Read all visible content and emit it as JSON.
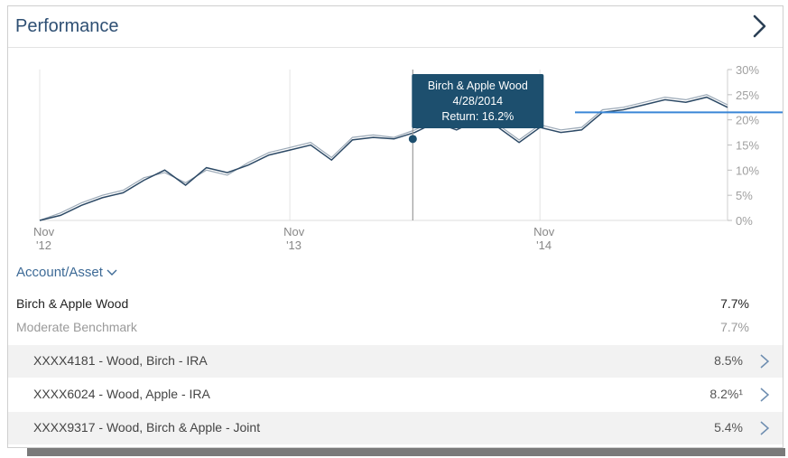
{
  "card": {
    "title": "Performance",
    "chevron_icon": "chevron-right-icon"
  },
  "chart_data": {
    "type": "line",
    "x_tick_labels": [
      {
        "month": "Nov",
        "year": "'12"
      },
      {
        "month": "Nov",
        "year": "'13"
      },
      {
        "month": "Nov",
        "year": "'14"
      }
    ],
    "y_tick_labels": [
      "30%",
      "25%",
      "20%",
      "15%",
      "10%",
      "5%",
      "0%"
    ],
    "ylim": [
      0,
      30
    ],
    "x_range": [
      "2012-11",
      "2015-08"
    ],
    "grid": "vertical",
    "axis_side": "right",
    "series": [
      {
        "color": "#2d4a66",
        "values": [
          [
            "2012-11",
            0
          ],
          [
            "2012-12",
            1.0
          ],
          [
            "2013-01",
            3.0
          ],
          [
            "2013-02",
            4.5
          ],
          [
            "2013-03",
            5.5
          ],
          [
            "2013-04",
            8.0
          ],
          [
            "2013-05",
            10.0
          ],
          [
            "2013-06",
            7.0
          ],
          [
            "2013-07",
            10.5
          ],
          [
            "2013-08",
            9.5
          ],
          [
            "2013-09",
            11.0
          ],
          [
            "2013-10",
            13.0
          ],
          [
            "2013-11",
            14.0
          ],
          [
            "2013-12",
            15.0
          ],
          [
            "2014-01",
            12.0
          ],
          [
            "2014-02",
            16.0
          ],
          [
            "2014-03",
            16.5
          ],
          [
            "2014-04",
            16.2
          ],
          [
            "2014-05",
            17.5
          ],
          [
            "2014-06",
            19.5
          ],
          [
            "2014-07",
            18.0
          ],
          [
            "2014-08",
            20.0
          ],
          [
            "2014-09",
            18.5
          ],
          [
            "2014-10",
            15.5
          ],
          [
            "2014-11",
            18.5
          ],
          [
            "2014-12",
            17.5
          ],
          [
            "2015-01",
            18.0
          ],
          [
            "2015-02",
            21.5
          ],
          [
            "2015-03",
            22.0
          ],
          [
            "2015-04",
            23.0
          ],
          [
            "2015-05",
            24.0
          ],
          [
            "2015-06",
            23.5
          ],
          [
            "2015-07",
            24.5
          ],
          [
            "2015-08",
            22.5
          ]
        ]
      },
      {
        "color": "#9aa8b6",
        "values": [
          [
            "2012-11",
            0
          ],
          [
            "2012-12",
            1.5
          ],
          [
            "2013-01",
            3.5
          ],
          [
            "2013-02",
            5.0
          ],
          [
            "2013-03",
            6.0
          ],
          [
            "2013-04",
            8.5
          ],
          [
            "2013-05",
            9.5
          ],
          [
            "2013-06",
            7.5
          ],
          [
            "2013-07",
            10.0
          ],
          [
            "2013-08",
            9.0
          ],
          [
            "2013-09",
            11.5
          ],
          [
            "2013-10",
            13.5
          ],
          [
            "2013-11",
            14.5
          ],
          [
            "2013-12",
            15.5
          ],
          [
            "2014-01",
            12.5
          ],
          [
            "2014-02",
            16.5
          ],
          [
            "2014-03",
            17.0
          ],
          [
            "2014-04",
            16.5
          ],
          [
            "2014-05",
            18.0
          ],
          [
            "2014-06",
            20.0
          ],
          [
            "2014-07",
            18.5
          ],
          [
            "2014-08",
            20.5
          ],
          [
            "2014-09",
            19.0
          ],
          [
            "2014-10",
            16.0
          ],
          [
            "2014-11",
            19.0
          ],
          [
            "2014-12",
            18.0
          ],
          [
            "2015-01",
            18.5
          ],
          [
            "2015-02",
            22.0
          ],
          [
            "2015-03",
            22.5
          ],
          [
            "2015-04",
            23.5
          ],
          [
            "2015-05",
            24.5
          ],
          [
            "2015-06",
            24.0
          ],
          [
            "2015-07",
            25.0
          ],
          [
            "2015-08",
            23.0
          ]
        ]
      }
    ],
    "reference_line": {
      "value": 21.5,
      "color": "#3a86d6"
    },
    "marker": {
      "x": "2014-04-28",
      "y": 16.2
    },
    "tooltip": {
      "name": "Birch & Apple Wood",
      "date": "4/28/2014",
      "return_text": "Return: 16.2%",
      "background": "#1d4f6e"
    }
  },
  "account_toggle": {
    "label": "Account/Asset",
    "icon": "chevron-down-icon"
  },
  "summary": {
    "primary": {
      "name": "Birch & Apple Wood",
      "value": "7.7%"
    },
    "benchmark": {
      "name": "Moderate Benchmark",
      "value": "7.7%"
    }
  },
  "accounts": [
    {
      "label": "XXXX4181 - Wood, Birch - IRA",
      "value": "8.5%"
    },
    {
      "label": "XXXX6024 - Wood, Apple - IRA",
      "value": "8.2%¹"
    },
    {
      "label": "XXXX9317 - Wood, Birch & Apple - Joint",
      "value": "5.4%"
    }
  ],
  "colors": {
    "title": "#2e4f73",
    "link": "#3d6a96",
    "row_shade": "#f2f2f2"
  }
}
